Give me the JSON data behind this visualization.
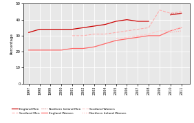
{
  "years": [
    1997,
    1998,
    1999,
    2000,
    2001,
    2002,
    2003,
    2004,
    2005,
    2006,
    2007,
    2008,
    2009,
    2010,
    2011
  ],
  "england_men": [
    32,
    34,
    34,
    34,
    34,
    35,
    36,
    37,
    39,
    40,
    39,
    39,
    null,
    43,
    44
  ],
  "scotland_men": [
    null,
    null,
    null,
    null,
    30,
    30,
    31,
    31,
    32,
    33,
    34,
    35,
    46,
    44,
    45
  ],
  "ni_men": [
    null,
    null,
    null,
    null,
    null,
    null,
    null,
    null,
    null,
    null,
    null,
    null,
    null,
    44,
    44
  ],
  "england_women": [
    21,
    21,
    21,
    21,
    22,
    22,
    23,
    25,
    27,
    28,
    29,
    30,
    30,
    33,
    35
  ],
  "scotland_women": [
    null,
    null,
    null,
    null,
    null,
    null,
    null,
    null,
    28,
    29,
    30,
    31,
    33,
    33,
    35
  ],
  "ni_women": [
    null,
    null,
    null,
    null,
    null,
    null,
    null,
    null,
    null,
    null,
    null,
    null,
    null,
    32,
    33
  ],
  "ylim": [
    0,
    50
  ],
  "yticks": [
    0,
    10,
    20,
    30,
    40,
    50
  ],
  "ylabel": "Percentage",
  "england_men_color": "#cc0000",
  "scotland_men_color": "#ffaaaa",
  "ni_men_color": "#cc6666",
  "england_women_color": "#ff6666",
  "scotland_women_color": "#ffcccc",
  "ni_women_color": "#ffaaaa",
  "plot_bg_color": "#e8e8e8",
  "fig_bg_color": "#ffffff"
}
